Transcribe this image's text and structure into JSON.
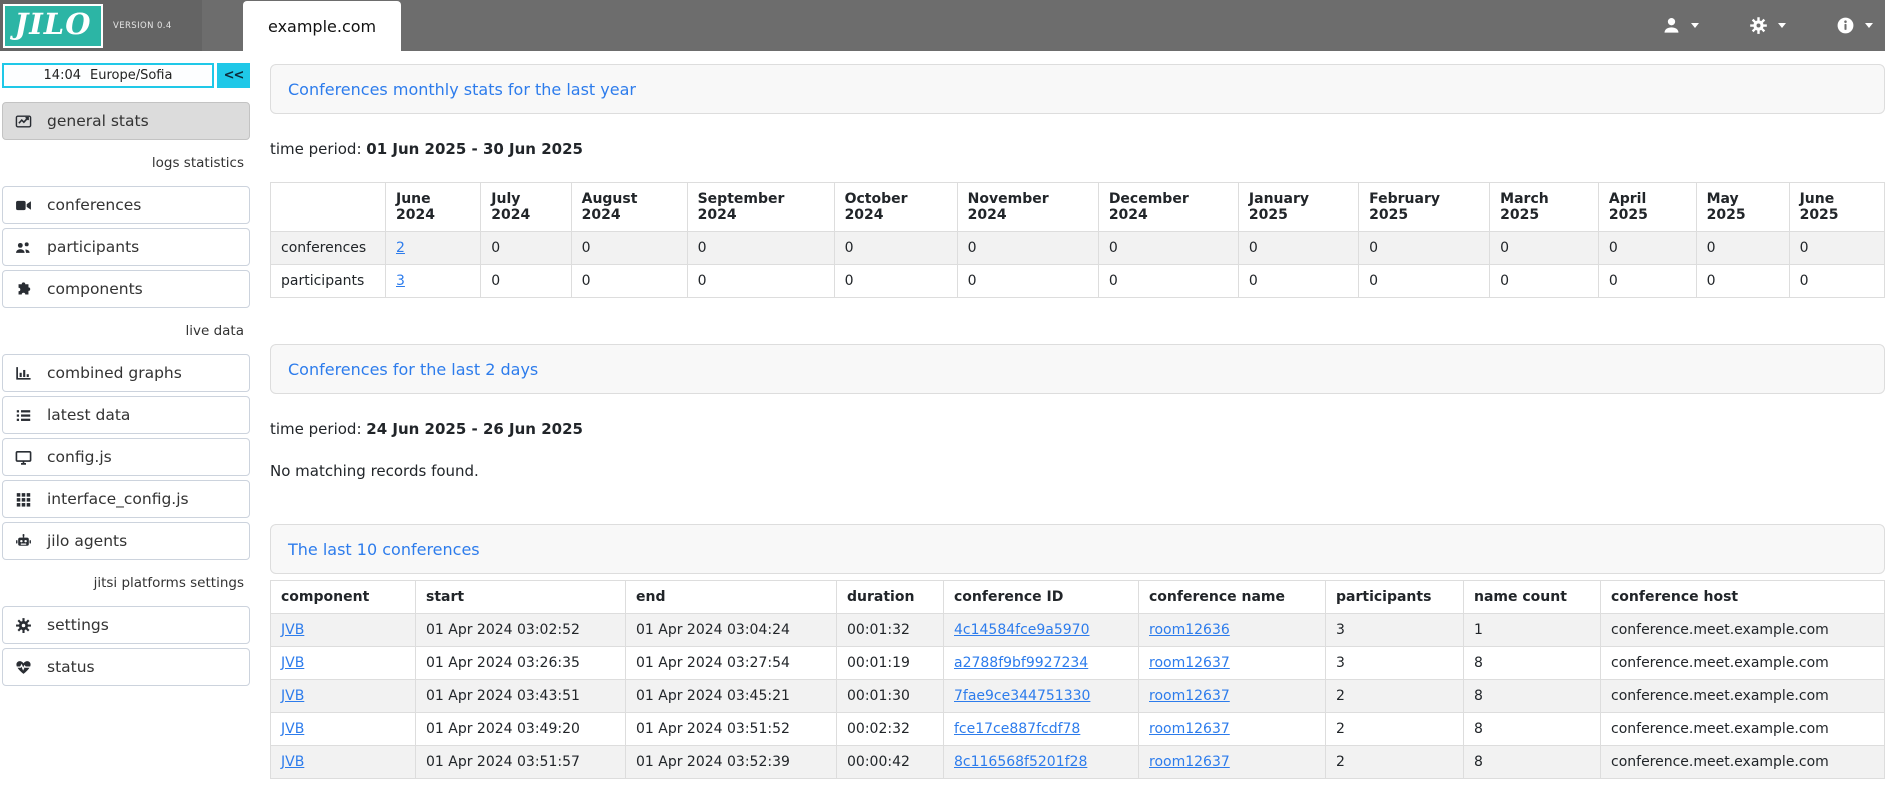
{
  "navbar": {
    "logo_text": "JILO",
    "version_label": "VERSION 0.4",
    "site_tab": "example.com",
    "menus": [
      {
        "icon": "user"
      },
      {
        "icon": "gear"
      },
      {
        "icon": "info"
      }
    ]
  },
  "sidebar": {
    "clock": {
      "time": "14:04",
      "timezone": "Europe/Sofia"
    },
    "collapse_button": "<<",
    "menu": [
      {
        "kind": "item",
        "icon": "chart-line",
        "label": "general stats",
        "active": true
      },
      {
        "kind": "label",
        "label": "logs statistics"
      },
      {
        "kind": "item",
        "icon": "video",
        "label": "conferences"
      },
      {
        "kind": "item",
        "icon": "users",
        "label": "participants"
      },
      {
        "kind": "item",
        "icon": "puzzle",
        "label": "components"
      },
      {
        "kind": "label",
        "label": "live data"
      },
      {
        "kind": "item",
        "icon": "chart-bar",
        "label": "combined graphs"
      },
      {
        "kind": "item",
        "icon": "list",
        "label": "latest data"
      },
      {
        "kind": "item",
        "icon": "desktop",
        "label": "config.js"
      },
      {
        "kind": "item",
        "icon": "grid",
        "label": "interface_config.js"
      },
      {
        "kind": "item",
        "icon": "robot",
        "label": "jilo agents"
      },
      {
        "kind": "label",
        "label": "jitsi platforms settings"
      },
      {
        "kind": "item",
        "icon": "gear",
        "label": "settings"
      },
      {
        "kind": "item",
        "icon": "heart-pulse",
        "label": "status"
      }
    ]
  },
  "sections": {
    "monthly": {
      "title": "Conferences monthly stats for the last year",
      "time_period_label": "time period:",
      "time_period": "01 Jun 2025 - 30 Jun 2025",
      "row_labels": [
        "conferences",
        "participants"
      ],
      "months": [
        "June 2024",
        "July 2024",
        "August 2024",
        "September 2024",
        "October 2024",
        "November 2024",
        "December 2024",
        "January 2025",
        "February 2025",
        "March 2025",
        "April 2025",
        "May 2025",
        "June 2025"
      ],
      "conferences_values": [
        "2",
        "0",
        "0",
        "0",
        "0",
        "0",
        "0",
        "0",
        "0",
        "0",
        "0",
        "0",
        "0"
      ],
      "participants_values": [
        "3",
        "0",
        "0",
        "0",
        "0",
        "0",
        "0",
        "0",
        "0",
        "0",
        "0",
        "0",
        "0"
      ]
    },
    "last2days": {
      "title": "Conferences for the last 2 days",
      "time_period_label": "time period:",
      "time_period": "24 Jun 2025 - 26 Jun 2025",
      "empty_message": "No matching records found."
    },
    "last10": {
      "title": "The last 10 conferences",
      "columns": [
        "component",
        "start",
        "end",
        "duration",
        "conference ID",
        "conference name",
        "participants",
        "name count",
        "conference host"
      ],
      "rows": [
        {
          "component": "JVB",
          "start": "01 Apr 2024 03:02:52",
          "end": "01 Apr 2024 03:04:24",
          "duration": "00:01:32",
          "conference_id": "4c14584fce9a5970",
          "conference_name": "room12636",
          "participants": "3",
          "name_count": "1",
          "conference_host": "conference.meet.example.com"
        },
        {
          "component": "JVB",
          "start": "01 Apr 2024 03:26:35",
          "end": "01 Apr 2024 03:27:54",
          "duration": "00:01:19",
          "conference_id": "a2788f9bf9927234",
          "conference_name": "room12637",
          "participants": "3",
          "name_count": "8",
          "conference_host": "conference.meet.example.com"
        },
        {
          "component": "JVB",
          "start": "01 Apr 2024 03:43:51",
          "end": "01 Apr 2024 03:45:21",
          "duration": "00:01:30",
          "conference_id": "7fae9ce344751330",
          "conference_name": "room12637",
          "participants": "2",
          "name_count": "8",
          "conference_host": "conference.meet.example.com"
        },
        {
          "component": "JVB",
          "start": "01 Apr 2024 03:49:20",
          "end": "01 Apr 2024 03:51:52",
          "duration": "00:02:32",
          "conference_id": "fce17ce887fcdf78",
          "conference_name": "room12637",
          "participants": "2",
          "name_count": "8",
          "conference_host": "conference.meet.example.com"
        },
        {
          "component": "JVB",
          "start": "01 Apr 2024 03:51:57",
          "end": "01 Apr 2024 03:52:39",
          "duration": "00:00:42",
          "conference_id": "8c116568f5201f28",
          "conference_name": "room12637",
          "participants": "2",
          "name_count": "8",
          "conference_host": "conference.meet.example.com"
        }
      ]
    }
  },
  "colors": {
    "accent_teal": "#2cb5a5",
    "accent_cyan": "#1fc8e8",
    "link_blue": "#2d7cec",
    "navbar_gray": "#6d6d6d",
    "row_stripe": "#f2f2f2",
    "table_border": "#dddddd"
  }
}
